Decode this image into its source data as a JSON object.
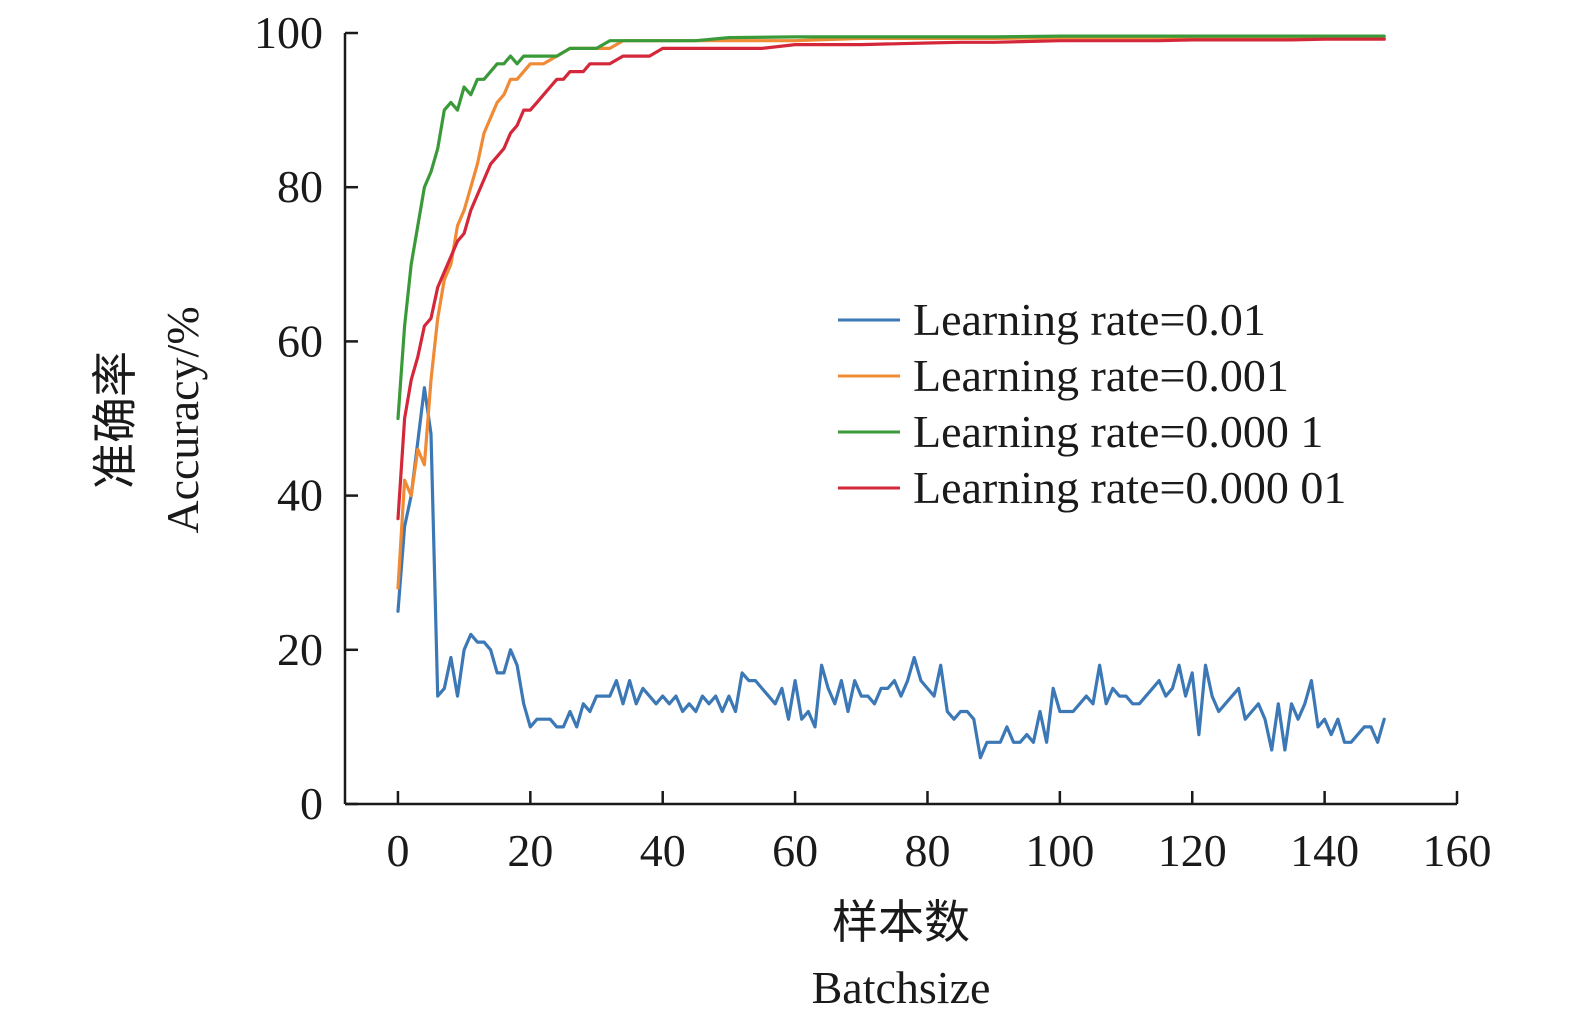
{
  "chart_data": {
    "type": "line",
    "title": "",
    "xlabel": "样本数",
    "xlabel_en": "Batchsize",
    "ylabel": "准确率",
    "ylabel_en": "Accuracy/%",
    "xlim": [
      -8,
      160
    ],
    "ylim": [
      0,
      100
    ],
    "x_ticks": [
      0,
      20,
      40,
      60,
      80,
      100,
      120,
      140,
      160
    ],
    "y_ticks": [
      0,
      20,
      40,
      60,
      80,
      100
    ],
    "grid": false,
    "legend_position": "center-right",
    "series": [
      {
        "name": "Learning rate=0.01",
        "color": "#3b78b5",
        "points": [
          [
            0,
            25
          ],
          [
            1,
            36
          ],
          [
            2,
            40
          ],
          [
            3,
            47
          ],
          [
            4,
            54
          ],
          [
            5,
            48
          ],
          [
            6,
            14
          ],
          [
            7,
            15
          ],
          [
            8,
            19
          ],
          [
            9,
            14
          ],
          [
            10,
            20
          ],
          [
            11,
            22
          ],
          [
            12,
            21
          ],
          [
            13,
            21
          ],
          [
            14,
            20
          ],
          [
            15,
            17
          ],
          [
            16,
            17
          ],
          [
            17,
            20
          ],
          [
            18,
            18
          ],
          [
            19,
            13
          ],
          [
            20,
            10
          ],
          [
            21,
            11
          ],
          [
            22,
            11
          ],
          [
            23,
            11
          ],
          [
            24,
            10
          ],
          [
            25,
            10
          ],
          [
            26,
            12
          ],
          [
            27,
            10
          ],
          [
            28,
            13
          ],
          [
            29,
            12
          ],
          [
            30,
            14
          ],
          [
            31,
            14
          ],
          [
            32,
            14
          ],
          [
            33,
            16
          ],
          [
            34,
            13
          ],
          [
            35,
            16
          ],
          [
            36,
            13
          ],
          [
            37,
            15
          ],
          [
            38,
            14
          ],
          [
            39,
            13
          ],
          [
            40,
            14
          ],
          [
            41,
            13
          ],
          [
            42,
            14
          ],
          [
            43,
            12
          ],
          [
            44,
            13
          ],
          [
            45,
            12
          ],
          [
            46,
            14
          ],
          [
            47,
            13
          ],
          [
            48,
            14
          ],
          [
            49,
            12
          ],
          [
            50,
            14
          ],
          [
            51,
            12
          ],
          [
            52,
            17
          ],
          [
            53,
            16
          ],
          [
            54,
            16
          ],
          [
            55,
            15
          ],
          [
            56,
            14
          ],
          [
            57,
            13
          ],
          [
            58,
            15
          ],
          [
            59,
            11
          ],
          [
            60,
            16
          ],
          [
            61,
            11
          ],
          [
            62,
            12
          ],
          [
            63,
            10
          ],
          [
            64,
            18
          ],
          [
            65,
            15
          ],
          [
            66,
            13
          ],
          [
            67,
            16
          ],
          [
            68,
            12
          ],
          [
            69,
            16
          ],
          [
            70,
            14
          ],
          [
            71,
            14
          ],
          [
            72,
            13
          ],
          [
            73,
            15
          ],
          [
            74,
            15
          ],
          [
            75,
            16
          ],
          [
            76,
            14
          ],
          [
            77,
            16
          ],
          [
            78,
            19
          ],
          [
            79,
            16
          ],
          [
            80,
            15
          ],
          [
            81,
            14
          ],
          [
            82,
            18
          ],
          [
            83,
            12
          ],
          [
            84,
            11
          ],
          [
            85,
            12
          ],
          [
            86,
            12
          ],
          [
            87,
            11
          ],
          [
            88,
            6
          ],
          [
            89,
            8
          ],
          [
            90,
            8
          ],
          [
            91,
            8
          ],
          [
            92,
            10
          ],
          [
            93,
            8
          ],
          [
            94,
            8
          ],
          [
            95,
            9
          ],
          [
            96,
            8
          ],
          [
            97,
            12
          ],
          [
            98,
            8
          ],
          [
            99,
            15
          ],
          [
            100,
            12
          ],
          [
            101,
            12
          ],
          [
            102,
            12
          ],
          [
            103,
            13
          ],
          [
            104,
            14
          ],
          [
            105,
            13
          ],
          [
            106,
            18
          ],
          [
            107,
            13
          ],
          [
            108,
            15
          ],
          [
            109,
            14
          ],
          [
            110,
            14
          ],
          [
            111,
            13
          ],
          [
            112,
            13
          ],
          [
            113,
            14
          ],
          [
            114,
            15
          ],
          [
            115,
            16
          ],
          [
            116,
            14
          ],
          [
            117,
            15
          ],
          [
            118,
            18
          ],
          [
            119,
            14
          ],
          [
            120,
            17
          ],
          [
            121,
            9
          ],
          [
            122,
            18
          ],
          [
            123,
            14
          ],
          [
            124,
            12
          ],
          [
            125,
            13
          ],
          [
            126,
            14
          ],
          [
            127,
            15
          ],
          [
            128,
            11
          ],
          [
            129,
            12
          ],
          [
            130,
            13
          ],
          [
            131,
            11
          ],
          [
            132,
            7
          ],
          [
            133,
            13
          ],
          [
            134,
            7
          ],
          [
            135,
            13
          ],
          [
            136,
            11
          ],
          [
            137,
            13
          ],
          [
            138,
            16
          ],
          [
            139,
            10
          ],
          [
            140,
            11
          ],
          [
            141,
            9
          ],
          [
            142,
            11
          ],
          [
            143,
            8
          ],
          [
            144,
            8
          ],
          [
            145,
            9
          ],
          [
            146,
            10
          ],
          [
            147,
            10
          ],
          [
            148,
            8
          ],
          [
            149,
            11
          ]
        ]
      },
      {
        "name": "Learning rate=0.001",
        "color": "#f08a35",
        "points": [
          [
            0,
            28
          ],
          [
            1,
            42
          ],
          [
            2,
            40
          ],
          [
            3,
            46
          ],
          [
            4,
            44
          ],
          [
            5,
            55
          ],
          [
            6,
            63
          ],
          [
            7,
            68
          ],
          [
            8,
            70
          ],
          [
            9,
            75
          ],
          [
            10,
            77
          ],
          [
            11,
            80
          ],
          [
            12,
            83
          ],
          [
            13,
            87
          ],
          [
            14,
            89
          ],
          [
            15,
            91
          ],
          [
            16,
            92
          ],
          [
            17,
            94
          ],
          [
            18,
            94
          ],
          [
            19,
            95
          ],
          [
            20,
            96
          ],
          [
            22,
            96
          ],
          [
            24,
            97
          ],
          [
            26,
            98
          ],
          [
            28,
            98
          ],
          [
            30,
            98
          ],
          [
            32,
            98
          ],
          [
            34,
            99
          ],
          [
            36,
            99
          ],
          [
            40,
            99
          ],
          [
            45,
            99
          ],
          [
            50,
            99
          ],
          [
            55,
            99
          ],
          [
            60,
            99
          ],
          [
            70,
            99.3
          ],
          [
            80,
            99.3
          ],
          [
            90,
            99.3
          ],
          [
            100,
            99.4
          ],
          [
            110,
            99.4
          ],
          [
            120,
            99.4
          ],
          [
            130,
            99.4
          ],
          [
            140,
            99.3
          ],
          [
            149,
            99.3
          ]
        ]
      },
      {
        "name": "Learning rate=0.000 1",
        "color": "#3a9a3a",
        "points": [
          [
            0,
            50
          ],
          [
            1,
            62
          ],
          [
            2,
            70
          ],
          [
            3,
            75
          ],
          [
            4,
            80
          ],
          [
            5,
            82
          ],
          [
            6,
            85
          ],
          [
            7,
            90
          ],
          [
            8,
            91
          ],
          [
            9,
            90
          ],
          [
            10,
            93
          ],
          [
            11,
            92
          ],
          [
            12,
            94
          ],
          [
            13,
            94
          ],
          [
            14,
            95
          ],
          [
            15,
            96
          ],
          [
            16,
            96
          ],
          [
            17,
            97
          ],
          [
            18,
            96
          ],
          [
            19,
            97
          ],
          [
            20,
            97
          ],
          [
            22,
            97
          ],
          [
            24,
            97
          ],
          [
            26,
            98
          ],
          [
            28,
            98
          ],
          [
            30,
            98
          ],
          [
            32,
            99
          ],
          [
            35,
            99
          ],
          [
            40,
            99
          ],
          [
            45,
            99
          ],
          [
            50,
            99.4
          ],
          [
            60,
            99.5
          ],
          [
            70,
            99.5
          ],
          [
            80,
            99.5
          ],
          [
            90,
            99.5
          ],
          [
            100,
            99.6
          ],
          [
            110,
            99.6
          ],
          [
            120,
            99.6
          ],
          [
            130,
            99.6
          ],
          [
            140,
            99.6
          ],
          [
            149,
            99.6
          ]
        ]
      },
      {
        "name": "Learning rate=0.000 01",
        "color": "#d4283a",
        "points": [
          [
            0,
            37
          ],
          [
            1,
            50
          ],
          [
            2,
            55
          ],
          [
            3,
            58
          ],
          [
            4,
            62
          ],
          [
            5,
            63
          ],
          [
            6,
            67
          ],
          [
            7,
            69
          ],
          [
            8,
            71
          ],
          [
            9,
            73
          ],
          [
            10,
            74
          ],
          [
            11,
            77
          ],
          [
            12,
            79
          ],
          [
            13,
            81
          ],
          [
            14,
            83
          ],
          [
            15,
            84
          ],
          [
            16,
            85
          ],
          [
            17,
            87
          ],
          [
            18,
            88
          ],
          [
            19,
            90
          ],
          [
            20,
            90
          ],
          [
            21,
            91
          ],
          [
            22,
            92
          ],
          [
            23,
            93
          ],
          [
            24,
            94
          ],
          [
            25,
            94
          ],
          [
            26,
            95
          ],
          [
            27,
            95
          ],
          [
            28,
            95
          ],
          [
            29,
            96
          ],
          [
            30,
            96
          ],
          [
            32,
            96
          ],
          [
            34,
            97
          ],
          [
            36,
            97
          ],
          [
            38,
            97
          ],
          [
            40,
            98
          ],
          [
            42,
            98
          ],
          [
            45,
            98
          ],
          [
            50,
            98
          ],
          [
            55,
            98
          ],
          [
            60,
            98.5
          ],
          [
            65,
            98.5
          ],
          [
            70,
            98.5
          ],
          [
            75,
            98.6
          ],
          [
            80,
            98.7
          ],
          [
            85,
            98.8
          ],
          [
            90,
            98.8
          ],
          [
            95,
            98.9
          ],
          [
            100,
            99
          ],
          [
            105,
            99
          ],
          [
            110,
            99
          ],
          [
            115,
            99
          ],
          [
            120,
            99.1
          ],
          [
            125,
            99.1
          ],
          [
            130,
            99.1
          ],
          [
            135,
            99.1
          ],
          [
            140,
            99.2
          ],
          [
            145,
            99.2
          ],
          [
            149,
            99.2
          ]
        ]
      }
    ]
  }
}
